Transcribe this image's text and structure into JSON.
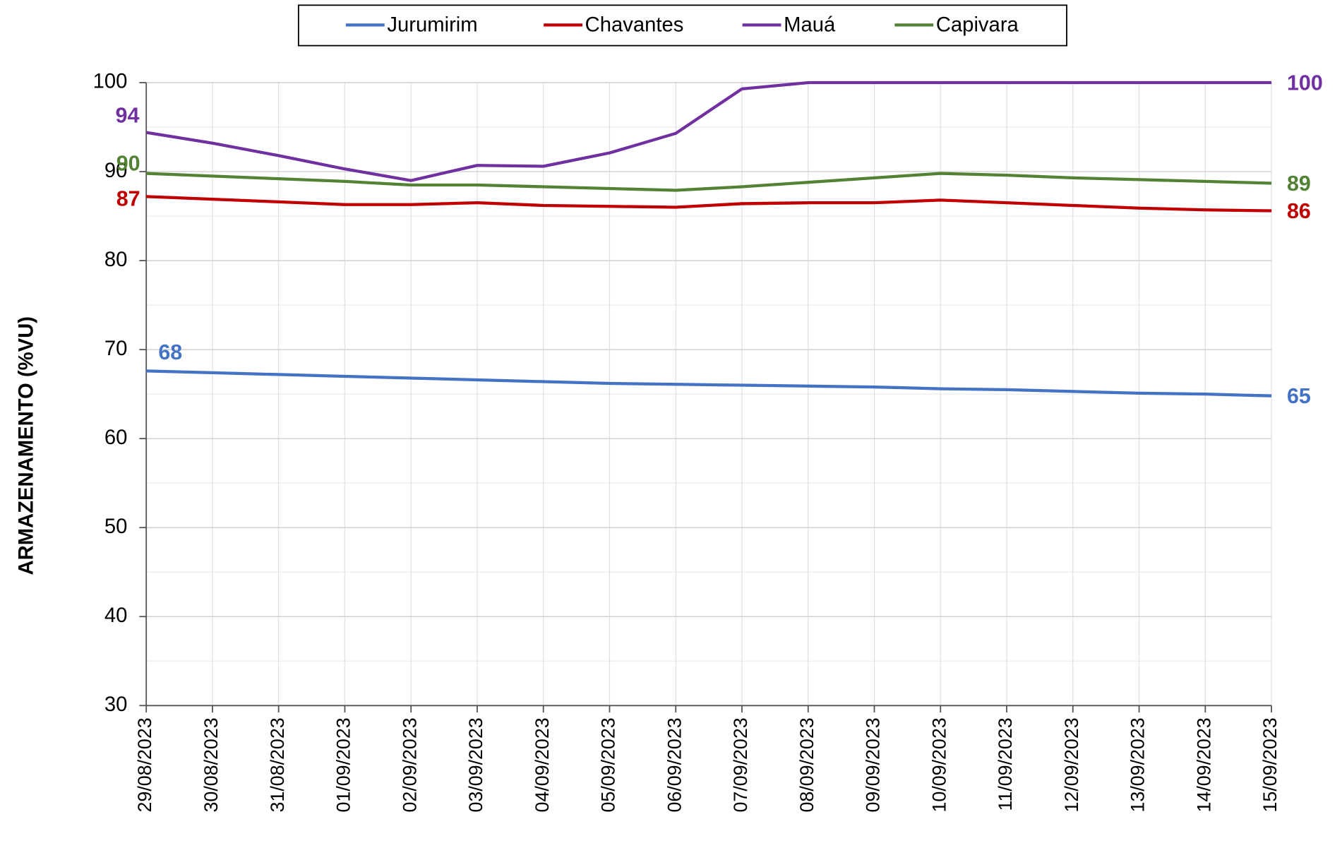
{
  "chart_data": {
    "type": "line",
    "y_label": "ARMAZENAMENTO (%VU)",
    "x": [
      "29/08/2023",
      "30/08/2023",
      "31/08/2023",
      "01/09/2023",
      "02/09/2023",
      "03/09/2023",
      "04/09/2023",
      "05/09/2023",
      "06/09/2023",
      "07/09/2023",
      "08/09/2023",
      "09/09/2023",
      "10/09/2023",
      "11/09/2023",
      "12/09/2023",
      "13/09/2023",
      "14/09/2023",
      "15/09/2023"
    ],
    "series": [
      {
        "name": "Jurumirim",
        "color": "#4472c4",
        "values": [
          67.6,
          67.4,
          67.2,
          67.0,
          66.8,
          66.6,
          66.4,
          66.2,
          66.1,
          66.0,
          65.9,
          65.8,
          65.6,
          65.5,
          65.3,
          65.1,
          65.0,
          64.8
        ],
        "value_labels": [
          "68",
          null,
          null,
          null,
          null,
          null,
          null,
          null,
          null,
          null,
          null,
          null,
          null,
          null,
          null,
          null,
          null,
          "65"
        ]
      },
      {
        "name": "Chavantes",
        "color": "#c00000",
        "values": [
          87.2,
          86.9,
          86.6,
          86.3,
          86.3,
          86.5,
          86.2,
          86.1,
          86.0,
          86.4,
          86.5,
          86.5,
          86.8,
          86.5,
          86.2,
          85.9,
          85.7,
          85.6
        ],
        "value_labels": [
          "87",
          null,
          null,
          null,
          null,
          null,
          null,
          null,
          null,
          null,
          null,
          null,
          null,
          null,
          null,
          null,
          null,
          "86"
        ]
      },
      {
        "name": "Mauá",
        "color": "#7030a0",
        "values": [
          94.4,
          93.2,
          91.8,
          90.3,
          89.0,
          90.7,
          90.6,
          92.1,
          94.3,
          99.3,
          100,
          100,
          100,
          100,
          100,
          100,
          100,
          100
        ],
        "value_labels": [
          "94",
          null,
          null,
          null,
          null,
          null,
          null,
          null,
          null,
          null,
          null,
          null,
          null,
          null,
          null,
          null,
          null,
          "100"
        ]
      },
      {
        "name": "Capivara",
        "color": "#548235",
        "values": [
          89.8,
          89.5,
          89.2,
          88.9,
          88.5,
          88.5,
          88.3,
          88.1,
          87.9,
          88.3,
          88.8,
          89.3,
          89.8,
          89.6,
          89.3,
          89.1,
          88.9,
          88.7
        ],
        "value_labels": [
          "90",
          null,
          null,
          null,
          null,
          null,
          null,
          null,
          null,
          null,
          null,
          null,
          null,
          null,
          null,
          null,
          null,
          "89"
        ]
      }
    ],
    "ylim": [
      30,
      100
    ],
    "yticks": [
      30,
      40,
      50,
      60,
      70,
      80,
      90,
      100
    ],
    "grid": true,
    "legend": "top"
  }
}
